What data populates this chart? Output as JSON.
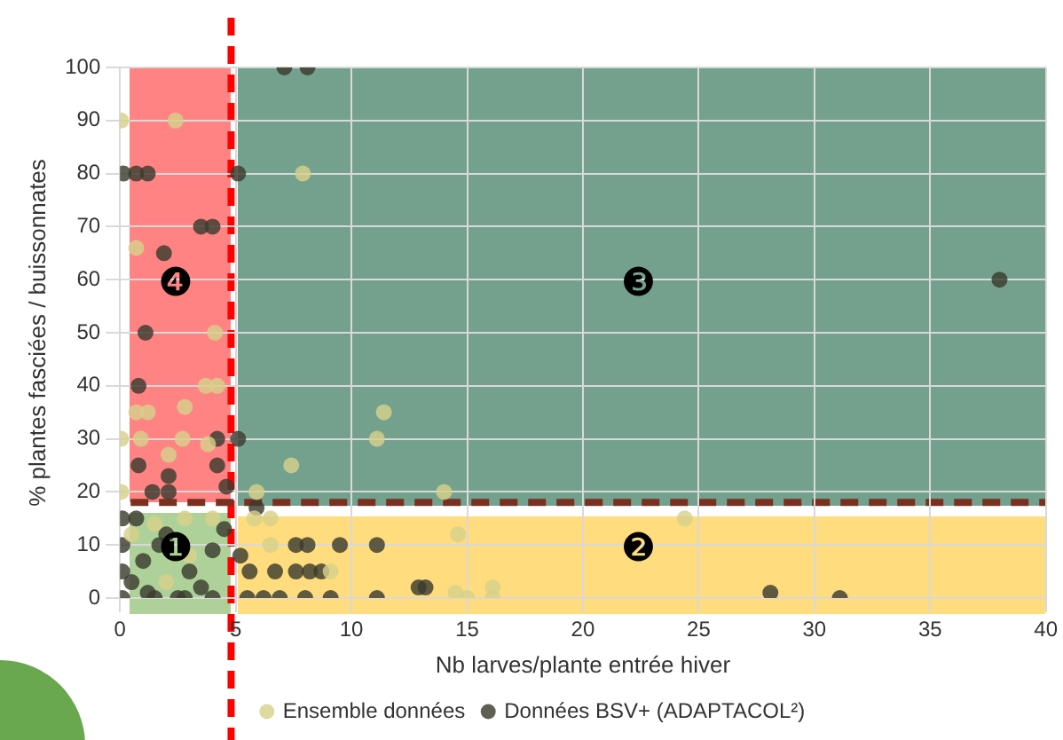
{
  "chart_data": {
    "type": "scatter",
    "xlabel": "Nb larves/plante entrée hiver",
    "ylabel": "% plantes fasciées / buissonnates",
    "xlim": [
      0,
      40
    ],
    "xticks": [
      0,
      5,
      10,
      15,
      20,
      25,
      30,
      35,
      40
    ],
    "ylim": [
      0,
      100
    ],
    "yticks": [
      0,
      10,
      20,
      30,
      40,
      50,
      60,
      70,
      80,
      90,
      100
    ],
    "grid": true,
    "legend": "bottom",
    "marker": "circle",
    "series": [
      {
        "name": "Ensemble données",
        "color": "#d6d08a",
        "x": [
          0.05,
          2.4,
          7.9,
          0.7,
          4.1,
          3.7,
          4.2,
          0.7,
          1.2,
          2.8,
          11.4,
          0.05,
          0.9,
          2.7,
          3.8,
          11.1,
          2.1,
          7.4,
          0.05,
          5.9,
          2.8,
          5.8,
          6.5,
          6.5,
          9.1,
          14,
          24.4,
          14.6,
          14.5,
          15,
          16.1,
          16.1,
          0.5,
          1.5,
          3,
          2,
          4
        ],
        "values": [
          90,
          90,
          80,
          66,
          50,
          40,
          40,
          35,
          35,
          36,
          35,
          30,
          30,
          30,
          29,
          30,
          27,
          25,
          20,
          20,
          15,
          15,
          15,
          10,
          5,
          20,
          15,
          12,
          1,
          0,
          2,
          0,
          12,
          14,
          8,
          3,
          15
        ]
      },
      {
        "name": "Données BSV+ (ADAPTACOL²)",
        "color": "#3b3b2e",
        "x": [
          7.1,
          8.1,
          0.15,
          0.7,
          1.2,
          5.1,
          3.5,
          4,
          1.9,
          1.1,
          0.8,
          4.2,
          5.1,
          0.8,
          4.2,
          2.1,
          1.4,
          2.1,
          4.6,
          5.9,
          0.1,
          0.7,
          0.1,
          1.7,
          7.6,
          8.1,
          9.5,
          11.1,
          0.1,
          5.2,
          5.6,
          6.7,
          7.6,
          8.2,
          8.7,
          8,
          0.1,
          1.5,
          2.5,
          4,
          5.5,
          6.2,
          6.9,
          9.1,
          11.1,
          12.9,
          13.2,
          28.1,
          31.1,
          38,
          0.5,
          1,
          2,
          3,
          3.5,
          4,
          1.2,
          2.8,
          4.5
        ],
        "values": [
          100,
          100,
          80,
          80,
          80,
          80,
          70,
          70,
          65,
          50,
          40,
          30,
          30,
          25,
          25,
          23,
          20,
          20,
          21,
          17,
          15,
          15,
          10,
          10,
          10,
          10,
          10,
          10,
          5,
          8,
          5,
          5,
          5,
          5,
          5,
          0,
          0,
          0,
          0,
          0,
          0,
          0,
          0,
          0,
          0,
          2,
          2,
          1,
          0,
          60,
          3,
          7,
          12,
          5,
          2,
          9,
          1,
          0,
          13
        ]
      }
    ],
    "ref_lines": [
      {
        "axis": "x",
        "value": 4.8,
        "color": "#ff0000",
        "line_style": "dashed"
      },
      {
        "axis": "y",
        "value": 18,
        "color": "#7a3020",
        "line_style": "dashed"
      }
    ],
    "annotations": [
      "❶",
      "❷",
      "❸",
      "❹"
    ]
  }
}
